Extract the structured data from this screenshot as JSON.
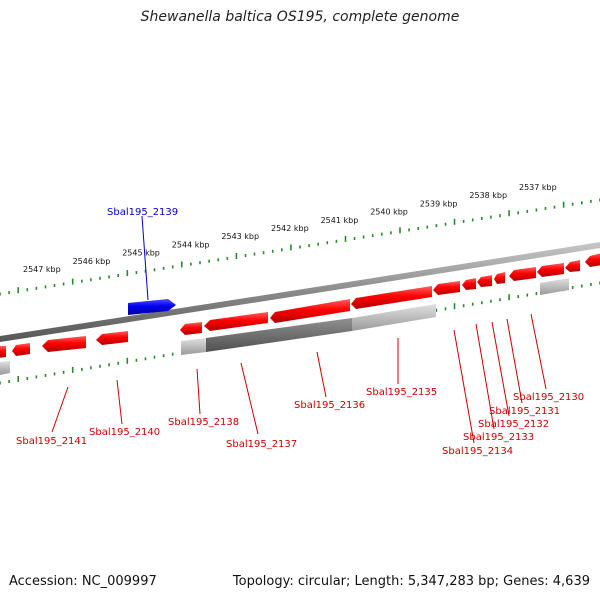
{
  "title": "Shewanella baltica OS195, complete genome",
  "footer": {
    "accession": "Accession: NC_009997",
    "stats": "Topology: circular; Length: 5,347,283 bp; Genes: 4,639"
  },
  "colors": {
    "forward_gene": "#ff0000",
    "reverse_gene": "#ff0000",
    "selected_gene": "#0000ee",
    "backbone": "#888888",
    "ruler": "#2a8a2a",
    "label_red": "#cc0000",
    "label_blue": "#0000cc"
  },
  "ruler_labels": [
    "2547 kbp",
    "2546 kbp",
    "2545 kbp",
    "2544 kbp",
    "2543 kbp",
    "2542 kbp",
    "2541 kbp",
    "2540 kbp",
    "2539 kbp",
    "2538 kbp",
    "2537 kbp"
  ],
  "genes": [
    {
      "id": "Sbal195_2139",
      "strand": "forward",
      "color": "blue"
    },
    {
      "id": "Sbal195_2141",
      "strand": "reverse",
      "color": "red"
    },
    {
      "id": "Sbal195_2140",
      "strand": "reverse",
      "color": "red"
    },
    {
      "id": "Sbal195_2138",
      "strand": "reverse",
      "color": "red"
    },
    {
      "id": "Sbal195_2137",
      "strand": "reverse",
      "color": "red"
    },
    {
      "id": "Sbal195_2136",
      "strand": "reverse",
      "color": "red"
    },
    {
      "id": "Sbal195_2135",
      "strand": "reverse",
      "color": "red"
    },
    {
      "id": "Sbal195_2134",
      "strand": "reverse",
      "color": "red"
    },
    {
      "id": "Sbal195_2133",
      "strand": "reverse",
      "color": "red"
    },
    {
      "id": "Sbal195_2132",
      "strand": "reverse",
      "color": "red"
    },
    {
      "id": "Sbal195_2131",
      "strand": "reverse",
      "color": "red"
    },
    {
      "id": "Sbal195_2130",
      "strand": "reverse",
      "color": "red"
    }
  ]
}
